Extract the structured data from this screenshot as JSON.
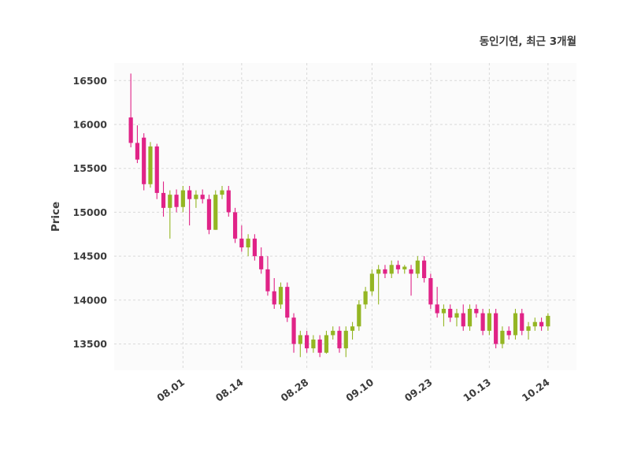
{
  "header": {
    "title": "동인기연, 최근 3개월"
  },
  "chart_data": {
    "type": "candlestick",
    "title": "동인기연, 최근 3개월",
    "xlabel": "",
    "ylabel": "Price",
    "ylim": [
      13200,
      16700
    ],
    "yticks": [
      13500,
      14000,
      14500,
      15000,
      15500,
      16000,
      16500
    ],
    "grid": true,
    "legend": "none",
    "background": "#ffffff",
    "plot_background": "#fbfbfb",
    "grid_color": "#d9d9d9",
    "up_color": "#94b623",
    "down_color": "#e02387",
    "xticks": [
      {
        "i": 8,
        "label": "08.01"
      },
      {
        "i": 17,
        "label": "08.14"
      },
      {
        "i": 27,
        "label": "08.28"
      },
      {
        "i": 37,
        "label": "09.10"
      },
      {
        "i": 46,
        "label": "09.23"
      },
      {
        "i": 55,
        "label": "10.13"
      },
      {
        "i": 64,
        "label": "10.24"
      }
    ],
    "ohlc_fields": [
      "open",
      "high",
      "low",
      "close"
    ],
    "ohlc": [
      [
        16080,
        16580,
        15740,
        15790
      ],
      [
        15790,
        15990,
        15560,
        15600
      ],
      [
        15850,
        15900,
        15250,
        15320
      ],
      [
        15320,
        15800,
        15280,
        15750
      ],
      [
        15750,
        15780,
        15150,
        15220
      ],
      [
        15220,
        15350,
        14950,
        15050
      ],
      [
        15050,
        15250,
        14700,
        15200
      ],
      [
        15200,
        15260,
        15000,
        15060
      ],
      [
        15060,
        15300,
        15000,
        15250
      ],
      [
        15250,
        15300,
        14850,
        15150
      ],
      [
        15150,
        15250,
        15050,
        15200
      ],
      [
        15200,
        15260,
        15100,
        15150
      ],
      [
        15150,
        15200,
        14750,
        14800
      ],
      [
        14800,
        15250,
        14800,
        15200
      ],
      [
        15200,
        15300,
        15150,
        15250
      ],
      [
        15250,
        15300,
        14950,
        15000
      ],
      [
        15000,
        15050,
        14650,
        14700
      ],
      [
        14700,
        14850,
        14550,
        14600
      ],
      [
        14600,
        14750,
        14500,
        14700
      ],
      [
        14700,
        14750,
        14450,
        14500
      ],
      [
        14500,
        14600,
        14300,
        14350
      ],
      [
        14350,
        14500,
        14050,
        14100
      ],
      [
        14100,
        14250,
        13900,
        13950
      ],
      [
        13950,
        14200,
        13900,
        14150
      ],
      [
        14150,
        14200,
        13750,
        13800
      ],
      [
        13800,
        13850,
        13400,
        13500
      ],
      [
        13500,
        13650,
        13350,
        13600
      ],
      [
        13600,
        13650,
        13400,
        13450
      ],
      [
        13450,
        13600,
        13400,
        13550
      ],
      [
        13550,
        13600,
        13350,
        13400
      ],
      [
        13400,
        13650,
        13390,
        13600
      ],
      [
        13600,
        13700,
        13550,
        13650
      ],
      [
        13650,
        13700,
        13400,
        13450
      ],
      [
        13450,
        13700,
        13350,
        13650
      ],
      [
        13650,
        13750,
        13550,
        13700
      ],
      [
        13700,
        14000,
        13650,
        13950
      ],
      [
        13950,
        14150,
        13900,
        14100
      ],
      [
        14100,
        14350,
        14050,
        14300
      ],
      [
        14300,
        14400,
        13950,
        14350
      ],
      [
        14350,
        14400,
        14250,
        14300
      ],
      [
        14300,
        14450,
        14250,
        14400
      ],
      [
        14400,
        14450,
        14300,
        14350
      ],
      [
        14350,
        14400,
        14300,
        14380
      ],
      [
        14350,
        14400,
        14050,
        14300
      ],
      [
        14300,
        14500,
        14250,
        14450
      ],
      [
        14450,
        14500,
        14200,
        14250
      ],
      [
        14250,
        14300,
        13900,
        13950
      ],
      [
        13950,
        14150,
        13800,
        13850
      ],
      [
        13850,
        13950,
        13700,
        13900
      ],
      [
        13900,
        13950,
        13750,
        13800
      ],
      [
        13800,
        13900,
        13700,
        13850
      ],
      [
        13850,
        13950,
        13650,
        13700
      ],
      [
        13700,
        13950,
        13650,
        13900
      ],
      [
        13900,
        13950,
        13800,
        13850
      ],
      [
        13850,
        13900,
        13600,
        13650
      ],
      [
        13650,
        13900,
        13600,
        13850
      ],
      [
        13850,
        13900,
        13450,
        13500
      ],
      [
        13500,
        13700,
        13450,
        13650
      ],
      [
        13650,
        13700,
        13550,
        13600
      ],
      [
        13600,
        13900,
        13550,
        13850
      ],
      [
        13850,
        13900,
        13600,
        13650
      ],
      [
        13650,
        13750,
        13550,
        13700
      ],
      [
        13700,
        13800,
        13650,
        13750
      ],
      [
        13750,
        13800,
        13650,
        13700
      ],
      [
        13700,
        13850,
        13650,
        13820
      ]
    ]
  }
}
